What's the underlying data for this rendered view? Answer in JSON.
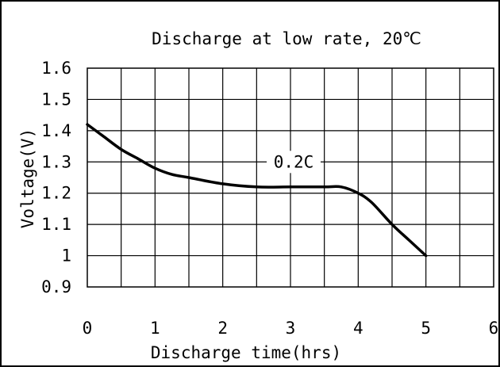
{
  "chart_data": {
    "type": "line",
    "title": "Discharge at low rate, 20℃",
    "xlabel": "Discharge time(hrs)",
    "ylabel": "Voltage(V)",
    "xlim": [
      0,
      6
    ],
    "ylim": [
      0.9,
      1.6
    ],
    "x_ticks": [
      "0",
      "1",
      "2",
      "3",
      "4",
      "5",
      "6"
    ],
    "y_ticks": [
      "1.6",
      "1.5",
      "1.4",
      "1.3",
      "1.2",
      "1.1",
      "1",
      "0.9"
    ],
    "grid": true,
    "series": [
      {
        "name": "0.2C",
        "color": "#000000",
        "x": [
          0,
          0.25,
          0.5,
          0.75,
          1.0,
          1.25,
          1.5,
          2.0,
          2.5,
          3.0,
          3.5,
          3.75,
          4.0,
          4.2,
          4.5,
          4.75,
          5.0
        ],
        "y": [
          1.42,
          1.38,
          1.34,
          1.31,
          1.28,
          1.26,
          1.25,
          1.23,
          1.22,
          1.22,
          1.22,
          1.22,
          1.2,
          1.17,
          1.1,
          1.05,
          1.0
        ]
      }
    ]
  }
}
